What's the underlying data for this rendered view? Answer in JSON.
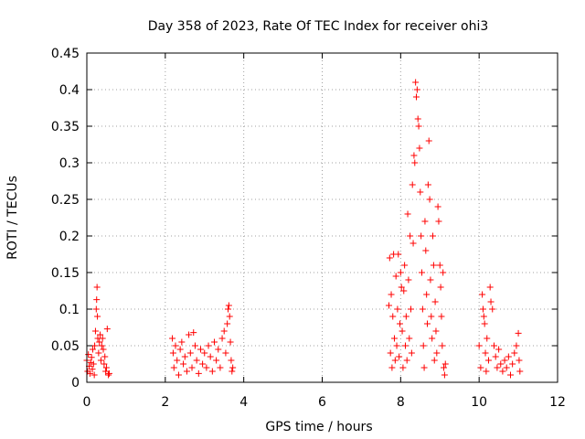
{
  "chart_data": {
    "type": "scatter",
    "title": "Day 358 of 2023, Rate Of TEC Index for receiver ohi3",
    "xlabel": "GPS time / hours",
    "ylabel": "ROTI / TECUs",
    "xlim": [
      0,
      12
    ],
    "ylim": [
      0,
      0.45
    ],
    "xticks": [
      0,
      2,
      4,
      6,
      8,
      10,
      12
    ],
    "yticks": [
      0,
      0.05,
      0.1,
      0.15,
      0.2,
      0.25,
      0.3,
      0.35,
      0.4,
      0.45
    ],
    "xtick_labels": [
      "0",
      "2",
      "4",
      "6",
      "8",
      "10",
      "12"
    ],
    "ytick_labels": [
      "0",
      "0.05",
      "0.1",
      "0.15",
      "0.2",
      "0.25",
      "0.3",
      "0.35",
      "0.4",
      "0.45"
    ],
    "grid": true,
    "marker": "+",
    "color": "#ff0000",
    "series": [
      {
        "points": [
          [
            0.0,
            0.03
          ],
          [
            0.02,
            0.015
          ],
          [
            0.04,
            0.038
          ],
          [
            0.06,
            0.022
          ],
          [
            0.08,
            0.012
          ],
          [
            0.1,
            0.027
          ],
          [
            0.12,
            0.034
          ],
          [
            0.14,
            0.018
          ],
          [
            0.15,
            0.045
          ],
          [
            0.17,
            0.025
          ],
          [
            0.19,
            0.01
          ],
          [
            0.2,
            0.05
          ],
          [
            0.22,
            0.07
          ],
          [
            0.24,
            0.1
          ],
          [
            0.25,
            0.113
          ],
          [
            0.26,
            0.13
          ],
          [
            0.27,
            0.09
          ],
          [
            0.28,
            0.06
          ],
          [
            0.3,
            0.04
          ],
          [
            0.32,
            0.055
          ],
          [
            0.34,
            0.065
          ],
          [
            0.36,
            0.03
          ],
          [
            0.38,
            0.05
          ],
          [
            0.4,
            0.06
          ],
          [
            0.42,
            0.045
          ],
          [
            0.44,
            0.025
          ],
          [
            0.46,
            0.035
          ],
          [
            0.48,
            0.015
          ],
          [
            0.5,
            0.02
          ],
          [
            0.52,
            0.073
          ],
          [
            0.55,
            0.01
          ],
          [
            0.57,
            0.012
          ],
          [
            2.18,
            0.06
          ],
          [
            2.2,
            0.04
          ],
          [
            2.22,
            0.02
          ],
          [
            2.26,
            0.05
          ],
          [
            2.3,
            0.03
          ],
          [
            2.34,
            0.01
          ],
          [
            2.38,
            0.045
          ],
          [
            2.42,
            0.055
          ],
          [
            2.46,
            0.025
          ],
          [
            2.5,
            0.035
          ],
          [
            2.55,
            0.015
          ],
          [
            2.6,
            0.065
          ],
          [
            2.64,
            0.04
          ],
          [
            2.68,
            0.02
          ],
          [
            2.72,
            0.068
          ],
          [
            2.76,
            0.05
          ],
          [
            2.8,
            0.03
          ],
          [
            2.85,
            0.012
          ],
          [
            2.9,
            0.045
          ],
          [
            2.95,
            0.025
          ],
          [
            3.0,
            0.04
          ],
          [
            3.05,
            0.02
          ],
          [
            3.1,
            0.05
          ],
          [
            3.15,
            0.035
          ],
          [
            3.2,
            0.015
          ],
          [
            3.25,
            0.055
          ],
          [
            3.3,
            0.03
          ],
          [
            3.35,
            0.045
          ],
          [
            3.4,
            0.02
          ],
          [
            3.45,
            0.06
          ],
          [
            3.5,
            0.07
          ],
          [
            3.54,
            0.04
          ],
          [
            3.58,
            0.08
          ],
          [
            3.6,
            0.1
          ],
          [
            3.62,
            0.105
          ],
          [
            3.64,
            0.09
          ],
          [
            3.66,
            0.055
          ],
          [
            3.68,
            0.03
          ],
          [
            3.7,
            0.015
          ],
          [
            3.72,
            0.02
          ],
          [
            7.7,
            0.105
          ],
          [
            7.72,
            0.17
          ],
          [
            7.74,
            0.04
          ],
          [
            7.76,
            0.12
          ],
          [
            7.78,
            0.02
          ],
          [
            7.8,
            0.09
          ],
          [
            7.82,
            0.175
          ],
          [
            7.84,
            0.06
          ],
          [
            7.86,
            0.03
          ],
          [
            7.88,
            0.145
          ],
          [
            7.9,
            0.05
          ],
          [
            7.92,
            0.1
          ],
          [
            7.94,
            0.175
          ],
          [
            7.96,
            0.035
          ],
          [
            7.98,
            0.08
          ],
          [
            8.0,
            0.15
          ],
          [
            8.02,
            0.13
          ],
          [
            8.04,
            0.07
          ],
          [
            8.06,
            0.02
          ],
          [
            8.08,
            0.125
          ],
          [
            8.1,
            0.16
          ],
          [
            8.12,
            0.05
          ],
          [
            8.14,
            0.09
          ],
          [
            8.16,
            0.03
          ],
          [
            8.18,
            0.23
          ],
          [
            8.2,
            0.14
          ],
          [
            8.22,
            0.06
          ],
          [
            8.24,
            0.2
          ],
          [
            8.26,
            0.1
          ],
          [
            8.28,
            0.04
          ],
          [
            8.3,
            0.27
          ],
          [
            8.32,
            0.19
          ],
          [
            8.34,
            0.31
          ],
          [
            8.36,
            0.3
          ],
          [
            8.38,
            0.41
          ],
          [
            8.4,
            0.39
          ],
          [
            8.42,
            0.4
          ],
          [
            8.44,
            0.36
          ],
          [
            8.46,
            0.35
          ],
          [
            8.48,
            0.32
          ],
          [
            8.5,
            0.26
          ],
          [
            8.52,
            0.2
          ],
          [
            8.54,
            0.15
          ],
          [
            8.56,
            0.1
          ],
          [
            8.58,
            0.05
          ],
          [
            8.6,
            0.02
          ],
          [
            8.62,
            0.22
          ],
          [
            8.64,
            0.18
          ],
          [
            8.66,
            0.12
          ],
          [
            8.68,
            0.08
          ],
          [
            8.7,
            0.27
          ],
          [
            8.72,
            0.33
          ],
          [
            8.74,
            0.25
          ],
          [
            8.76,
            0.14
          ],
          [
            8.78,
            0.09
          ],
          [
            8.8,
            0.06
          ],
          [
            8.82,
            0.2
          ],
          [
            8.84,
            0.16
          ],
          [
            8.86,
            0.03
          ],
          [
            8.88,
            0.11
          ],
          [
            8.9,
            0.07
          ],
          [
            8.92,
            0.04
          ],
          [
            8.95,
            0.24
          ],
          [
            8.97,
            0.22
          ],
          [
            9.0,
            0.16
          ],
          [
            9.02,
            0.13
          ],
          [
            9.04,
            0.09
          ],
          [
            9.06,
            0.05
          ],
          [
            9.08,
            0.15
          ],
          [
            9.1,
            0.02
          ],
          [
            9.12,
            0.01
          ],
          [
            9.14,
            0.025
          ],
          [
            10.0,
            0.05
          ],
          [
            10.04,
            0.02
          ],
          [
            10.08,
            0.12
          ],
          [
            10.1,
            0.1
          ],
          [
            10.12,
            0.09
          ],
          [
            10.14,
            0.08
          ],
          [
            10.16,
            0.04
          ],
          [
            10.18,
            0.015
          ],
          [
            10.2,
            0.06
          ],
          [
            10.24,
            0.03
          ],
          [
            10.28,
            0.13
          ],
          [
            10.3,
            0.11
          ],
          [
            10.34,
            0.1
          ],
          [
            10.38,
            0.05
          ],
          [
            10.42,
            0.035
          ],
          [
            10.46,
            0.02
          ],
          [
            10.5,
            0.045
          ],
          [
            10.55,
            0.025
          ],
          [
            10.6,
            0.015
          ],
          [
            10.65,
            0.03
          ],
          [
            10.7,
            0.02
          ],
          [
            10.75,
            0.035
          ],
          [
            10.8,
            0.01
          ],
          [
            10.85,
            0.025
          ],
          [
            10.9,
            0.04
          ],
          [
            10.95,
            0.05
          ],
          [
            11.0,
            0.067
          ],
          [
            11.02,
            0.03
          ],
          [
            11.04,
            0.015
          ]
        ]
      }
    ]
  }
}
